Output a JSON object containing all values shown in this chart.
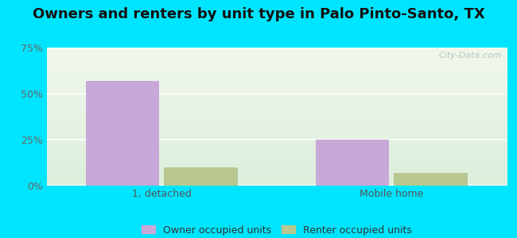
{
  "title": "Owners and renters by unit type in Palo Pinto-Santo, TX",
  "categories": [
    "1, detached",
    "Mobile home"
  ],
  "owner_values": [
    57,
    25
  ],
  "renter_values": [
    10,
    7
  ],
  "owner_color": "#c8a8d8",
  "renter_color": "#b8c890",
  "ylim": [
    0,
    75
  ],
  "yticks": [
    0,
    25,
    50,
    75
  ],
  "ytick_labels": [
    "0%",
    "25%",
    "50%",
    "75%"
  ],
  "bar_width": 0.32,
  "outer_bg": "#00e5ff",
  "plot_bg_top": "#f0f8ec",
  "plot_bg_bottom": "#ddeedd",
  "legend_labels": [
    "Owner occupied units",
    "Renter occupied units"
  ],
  "watermark": "City-Data.com",
  "title_fontsize": 13,
  "tick_fontsize": 9,
  "legend_fontsize": 9
}
